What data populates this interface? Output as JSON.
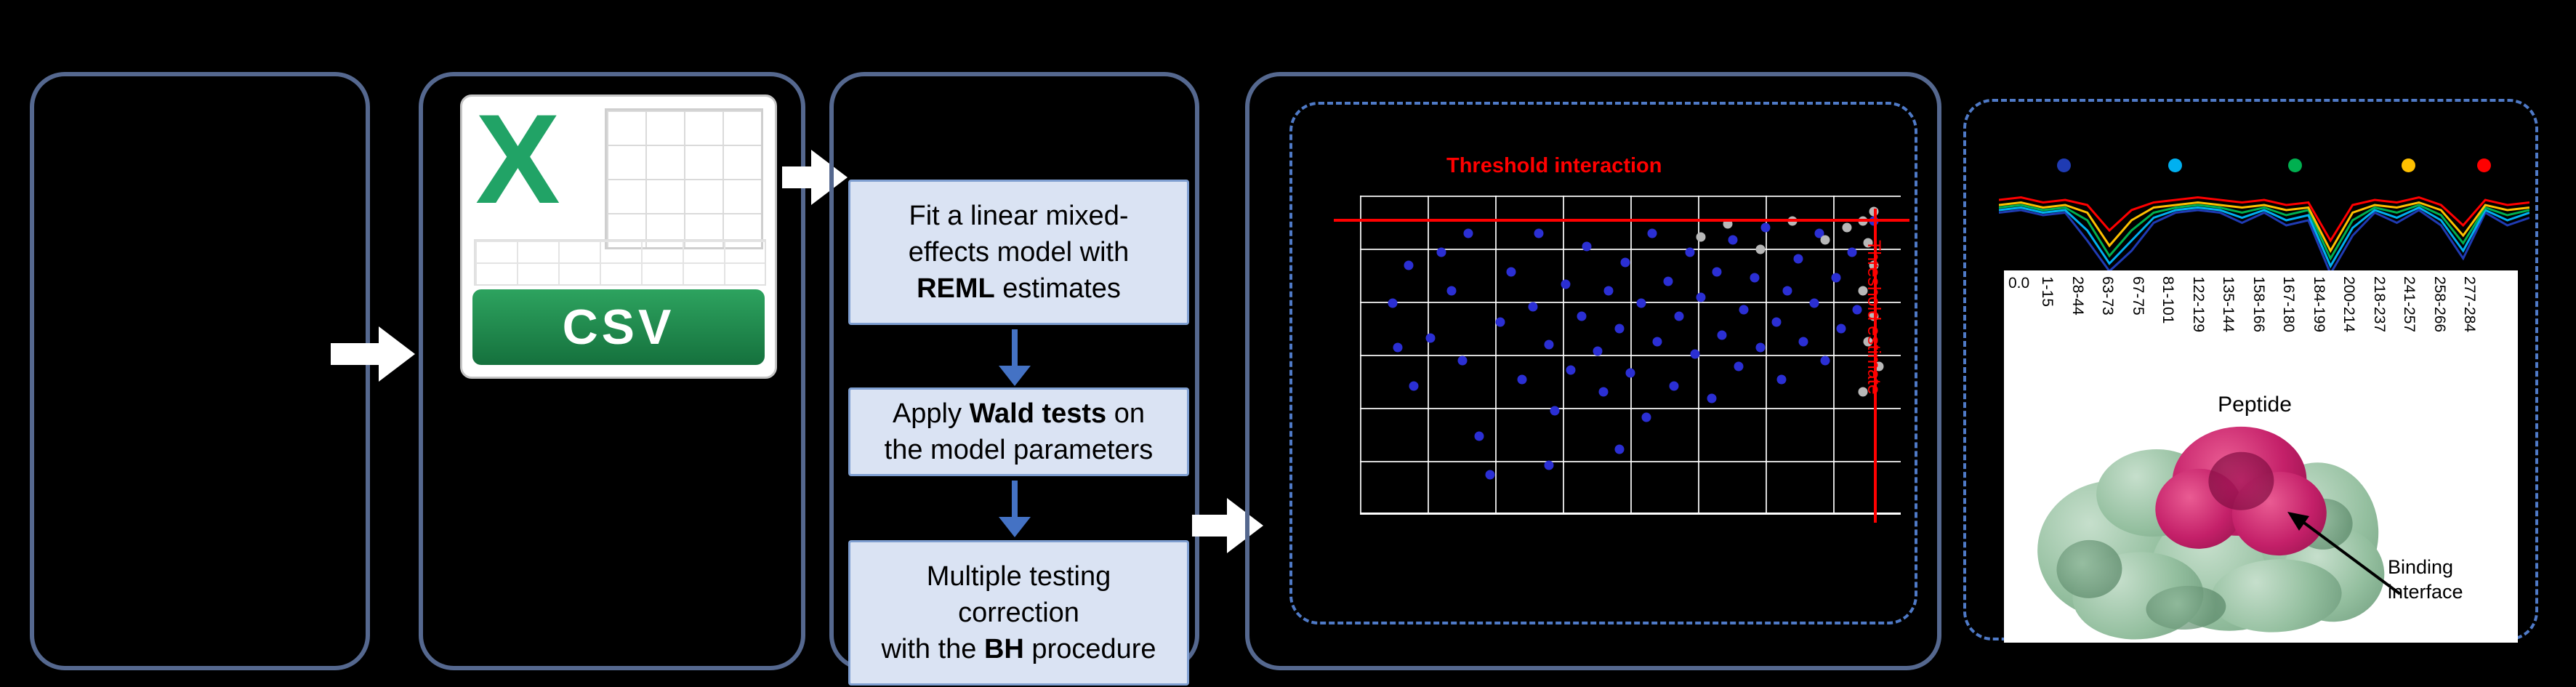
{
  "csv_panel": {
    "file_type_letter": "X",
    "file_type_label": "CSV"
  },
  "pipeline": {
    "steps": [
      {
        "segments": [
          {
            "text": "Fit a linear mixed-"
          },
          {
            "break": true
          },
          {
            "text": "effects model with "
          },
          {
            "break": true
          },
          {
            "text": "REML",
            "bold": true
          },
          {
            "text": " estimates"
          }
        ]
      },
      {
        "segments": [
          {
            "text": "Apply "
          },
          {
            "text": "Wald tests",
            "bold": true
          },
          {
            "text": " on "
          },
          {
            "break": true
          },
          {
            "text": "the model parameters"
          }
        ]
      },
      {
        "segments": [
          {
            "text": "Multiple testing"
          },
          {
            "break": true
          },
          {
            "text": "correction"
          },
          {
            "break": true
          },
          {
            "text": "with the "
          },
          {
            "text": "BH",
            "bold": true
          },
          {
            "text": " procedure"
          }
        ]
      }
    ]
  },
  "volcano": {
    "title": "Threshold interaction",
    "title_color": "#ff0000",
    "vertical_label": "Threshold estimate",
    "point_color_blue": "#2b2fd4",
    "point_color_gray": "#b8b8b8",
    "blue_points": [
      [
        6,
        34
      ],
      [
        9,
        22
      ],
      [
        13,
        45
      ],
      [
        17,
        30
      ],
      [
        19,
        52
      ],
      [
        22,
        76
      ],
      [
        24,
        88
      ],
      [
        26,
        40
      ],
      [
        28,
        24
      ],
      [
        30,
        58
      ],
      [
        32,
        35
      ],
      [
        33,
        12
      ],
      [
        35,
        47
      ],
      [
        36,
        68
      ],
      [
        38,
        28
      ],
      [
        39,
        55
      ],
      [
        41,
        38
      ],
      [
        42,
        16
      ],
      [
        44,
        49
      ],
      [
        45,
        62
      ],
      [
        46,
        30
      ],
      [
        48,
        42
      ],
      [
        49,
        21
      ],
      [
        50,
        56
      ],
      [
        52,
        34
      ],
      [
        53,
        70
      ],
      [
        54,
        12
      ],
      [
        55,
        46
      ],
      [
        57,
        27
      ],
      [
        58,
        60
      ],
      [
        59,
        38
      ],
      [
        61,
        18
      ],
      [
        62,
        50
      ],
      [
        63,
        32
      ],
      [
        65,
        64
      ],
      [
        66,
        24
      ],
      [
        67,
        44
      ],
      [
        69,
        14
      ],
      [
        70,
        54
      ],
      [
        71,
        36
      ],
      [
        73,
        26
      ],
      [
        74,
        48
      ],
      [
        75,
        10
      ],
      [
        77,
        40
      ],
      [
        78,
        58
      ],
      [
        79,
        30
      ],
      [
        81,
        20
      ],
      [
        82,
        46
      ],
      [
        84,
        34
      ],
      [
        85,
        12
      ],
      [
        86,
        52
      ],
      [
        88,
        26
      ],
      [
        89,
        42
      ],
      [
        91,
        18
      ],
      [
        92,
        36
      ],
      [
        20,
        12
      ],
      [
        15,
        18
      ],
      [
        10,
        60
      ],
      [
        7,
        48
      ],
      [
        35,
        85
      ],
      [
        48,
        80
      ],
      [
        95,
        8
      ]
    ],
    "gray_points": [
      [
        63,
        13
      ],
      [
        68,
        9
      ],
      [
        74,
        17
      ],
      [
        80,
        8
      ],
      [
        86,
        14
      ],
      [
        90,
        10
      ],
      [
        93,
        8
      ],
      [
        94,
        15
      ],
      [
        95,
        22
      ],
      [
        93,
        30
      ],
      [
        95,
        38
      ],
      [
        94,
        46
      ],
      [
        96,
        54
      ],
      [
        93,
        62
      ],
      [
        95,
        5
      ]
    ]
  },
  "profile": {
    "legend_colors": [
      "#1f3bb3",
      "#00b0f0",
      "#00b050",
      "#ffc000",
      "#ff0000"
    ],
    "series": [
      {
        "color": "#1f3bb3",
        "y": [
          15,
          14,
          16,
          15,
          26,
          38,
          30,
          19,
          15,
          14,
          15,
          19,
          15,
          20,
          18,
          39,
          24,
          15,
          19,
          14,
          20,
          33,
          15,
          20,
          17
        ]
      },
      {
        "color": "#00b0f0",
        "y": [
          14,
          13,
          15,
          14,
          22,
          35,
          26,
          17,
          14,
          13,
          14,
          17,
          14,
          18,
          16,
          36,
          21,
          14,
          17,
          13,
          18,
          30,
          14,
          18,
          15
        ]
      },
      {
        "color": "#00b050",
        "y": [
          13,
          12,
          14,
          13,
          18,
          32,
          22,
          15,
          13,
          12,
          13,
          15,
          13,
          16,
          14,
          33,
          18,
          13,
          15,
          12,
          16,
          27,
          13,
          16,
          14
        ]
      },
      {
        "color": "#ffc000",
        "y": [
          12,
          11,
          13,
          12,
          15,
          28,
          18,
          13,
          12,
          11,
          12,
          13,
          12,
          14,
          13,
          30,
          15,
          12,
          13,
          11,
          14,
          24,
          12,
          14,
          13
        ]
      },
      {
        "color": "#ff0000",
        "y": [
          10,
          9,
          11,
          10,
          12,
          22,
          14,
          11,
          10,
          9,
          10,
          11,
          10,
          12,
          11,
          26,
          12,
          10,
          11,
          9,
          12,
          20,
          10,
          12,
          11
        ]
      }
    ],
    "y_tick_label": "0.0",
    "peptide_labels": [
      "1-15",
      "28-44",
      "63-73",
      "67-75",
      "81-101",
      "122-129",
      "135-144",
      "158-166",
      "167-180",
      "184-199",
      "200-214",
      "218-237",
      "241-257",
      "258-266",
      "277-284"
    ],
    "axis_title": "Peptide",
    "annotation": "Binding interface"
  }
}
